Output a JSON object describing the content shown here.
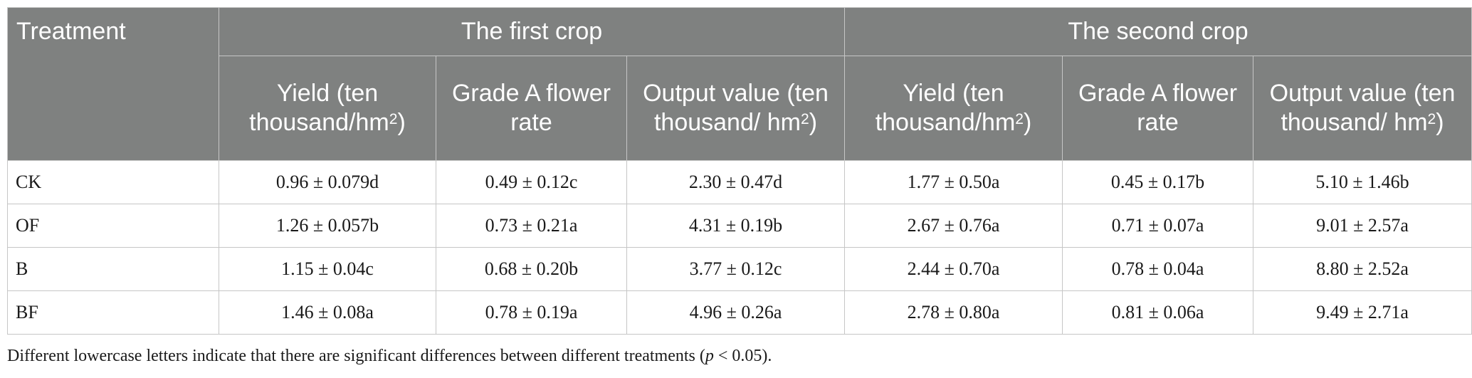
{
  "table": {
    "corner_header": "Treatment",
    "groups": [
      "The first crop",
      "The second crop"
    ],
    "subheaders": [
      {
        "main": "Yield (ten thousand/hm",
        "sup": "2",
        "tail": ")"
      },
      {
        "main": "Grade A flower rate",
        "sup": "",
        "tail": ""
      },
      {
        "main": "Output value (ten thousand/ hm",
        "sup": "2",
        "tail": ")"
      },
      {
        "main": "Yield (ten thousand/hm",
        "sup": "2",
        "tail": ")"
      },
      {
        "main": "Grade A flower rate",
        "sup": "",
        "tail": ""
      },
      {
        "main": "Output value (ten thousand/ hm",
        "sup": "2",
        "tail": ")"
      }
    ],
    "rows": [
      {
        "label": "CK",
        "cells": [
          "0.96 ± 0.079d",
          "0.49 ± 0.12c",
          "2.30 ± 0.47d",
          "1.77 ± 0.50a",
          "0.45 ± 0.17b",
          "5.10 ± 1.46b"
        ]
      },
      {
        "label": "OF",
        "cells": [
          "1.26 ± 0.057b",
          "0.73 ± 0.21a",
          "4.31 ± 0.19b",
          "2.67 ± 0.76a",
          "0.71 ± 0.07a",
          "9.01 ± 2.57a"
        ]
      },
      {
        "label": "B",
        "cells": [
          "1.15 ± 0.04c",
          "0.68 ± 0.20b",
          "3.77 ± 0.12c",
          "2.44 ± 0.70a",
          "0.78 ± 0.04a",
          "8.80 ± 2.52a"
        ]
      },
      {
        "label": "BF",
        "cells": [
          "1.46 ± 0.08a",
          "0.78 ± 0.19a",
          "4.96 ± 0.26a",
          "2.78 ± 0.80a",
          "0.81 ± 0.06a",
          "9.49 ± 2.71a"
        ]
      }
    ]
  },
  "footnote": {
    "before": "Different lowercase letters indicate that there are significant differences between different treatments (",
    "italic": "p",
    "after": " < 0.05)."
  },
  "colors": {
    "header_bg": "#7f8180",
    "header_text": "#ffffff",
    "border": "#c6c6c6"
  }
}
